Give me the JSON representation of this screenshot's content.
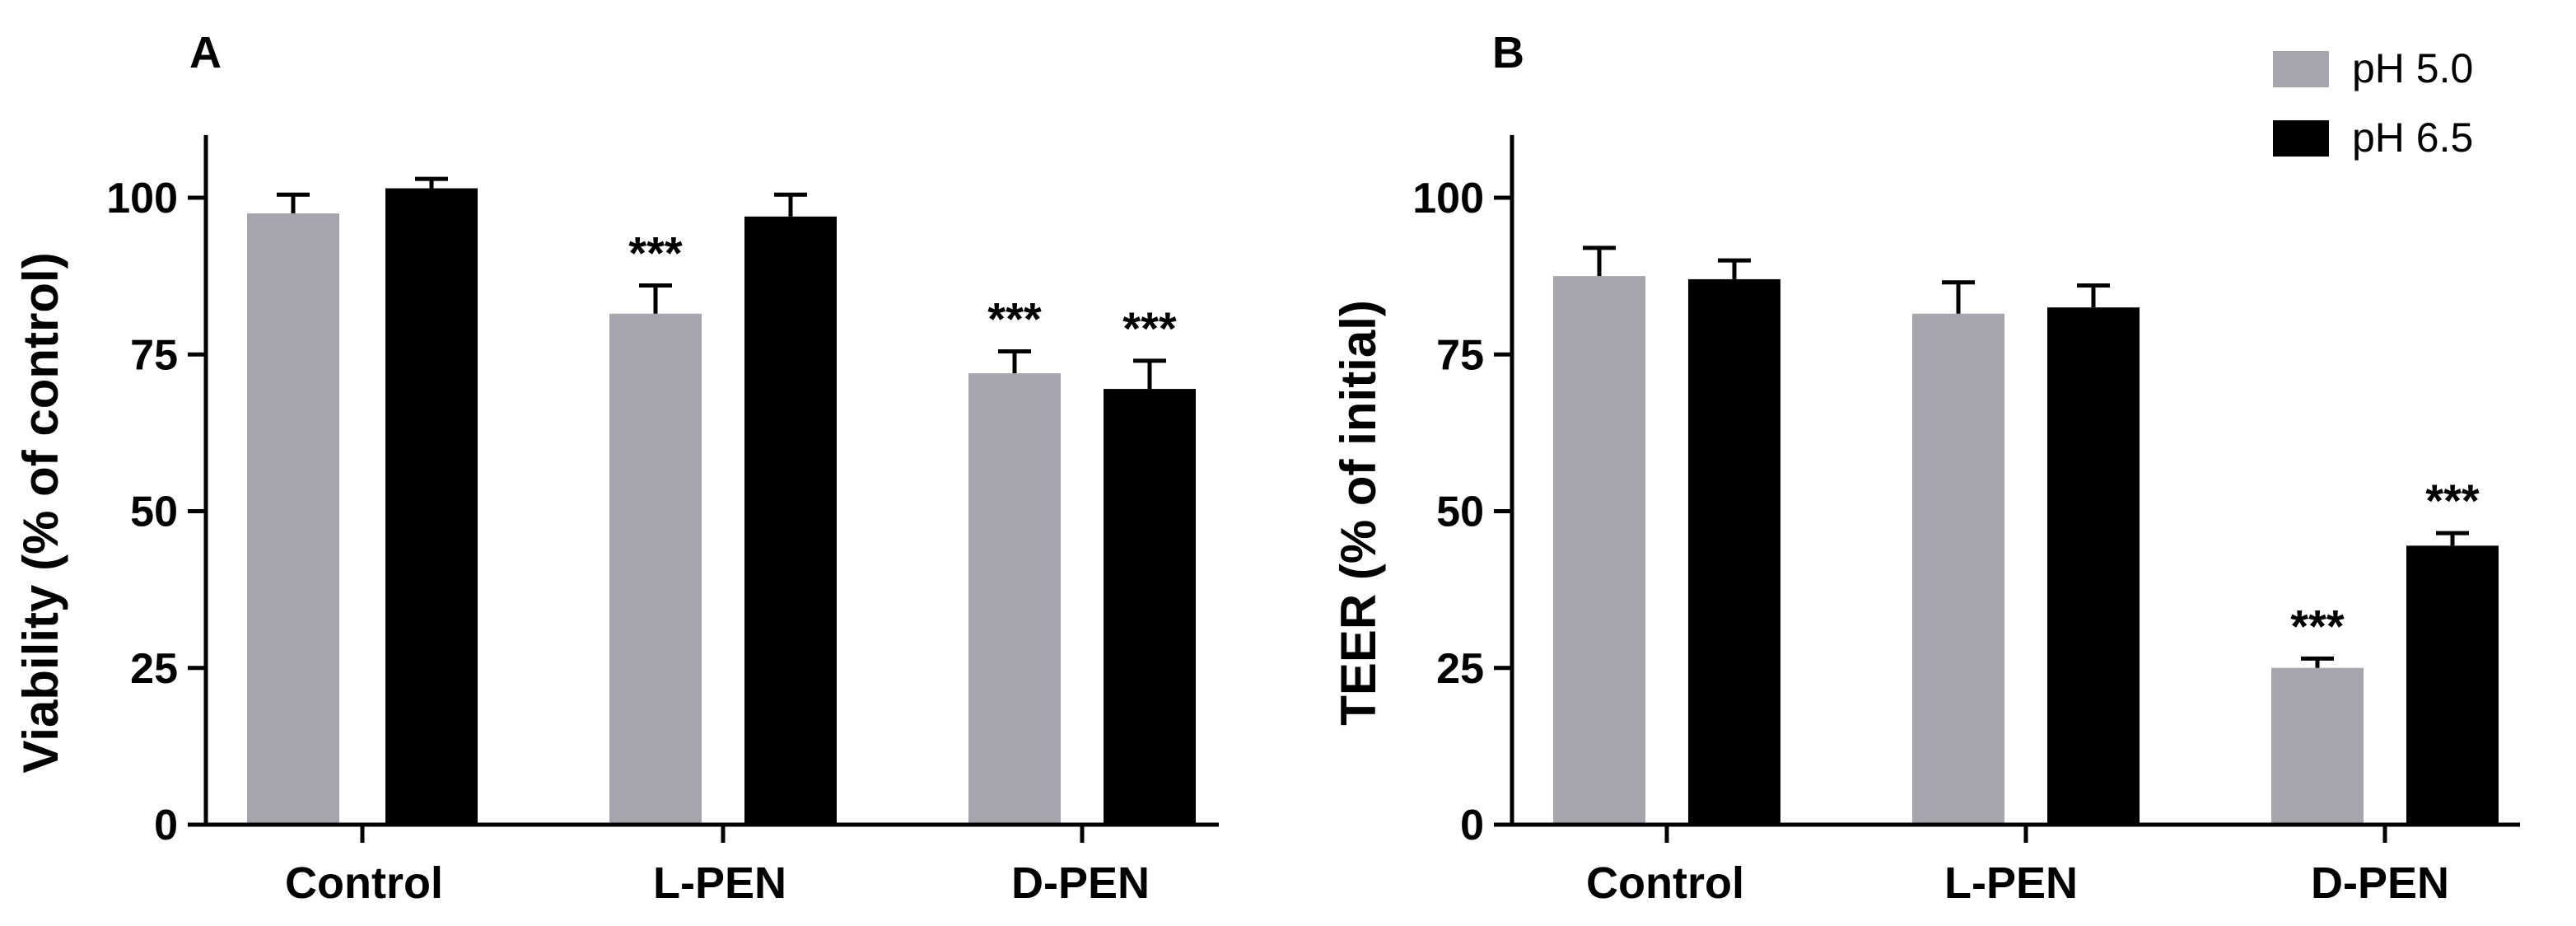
{
  "chart_data": [
    {
      "panel": "A",
      "type": "bar",
      "ylabel": "Viability  (% of control)",
      "ylim": [
        0,
        110
      ],
      "yticks": [
        0,
        25,
        50,
        75,
        100
      ],
      "categories": [
        "Control",
        "L-PEN",
        "D-PEN"
      ],
      "series": [
        {
          "name": "pH 5.0",
          "color": "#a6a5ab",
          "values": [
            97.5,
            81.5,
            72
          ],
          "errors": [
            3,
            4.5,
            3.5
          ],
          "significance": [
            "",
            "***",
            "***"
          ]
        },
        {
          "name": "pH 6.5",
          "color": "#000000",
          "values": [
            101.5,
            97,
            69.5
          ],
          "errors": [
            1.5,
            3.5,
            4.5
          ],
          "significance": [
            "",
            "",
            "***"
          ]
        }
      ]
    },
    {
      "panel": "B",
      "type": "bar",
      "ylabel": "TEER (% of initial)",
      "ylim": [
        0,
        110
      ],
      "yticks": [
        0,
        25,
        50,
        75,
        100
      ],
      "categories": [
        "Control",
        "L-PEN",
        "D-PEN"
      ],
      "series": [
        {
          "name": "pH 5.0",
          "color": "#a6a5ab",
          "values": [
            87.5,
            81.5,
            25
          ],
          "errors": [
            4.5,
            5,
            1.5
          ],
          "significance": [
            "",
            "",
            "***"
          ]
        },
        {
          "name": "pH 6.5",
          "color": "#000000",
          "values": [
            87,
            82.5,
            44.5
          ],
          "errors": [
            3,
            3.5,
            2
          ],
          "significance": [
            "",
            "",
            "***"
          ]
        }
      ]
    }
  ],
  "legend": [
    {
      "label": "pH 5.0",
      "color": "#a6a5ab"
    },
    {
      "label": "pH 6.5",
      "color": "#000000"
    }
  ]
}
